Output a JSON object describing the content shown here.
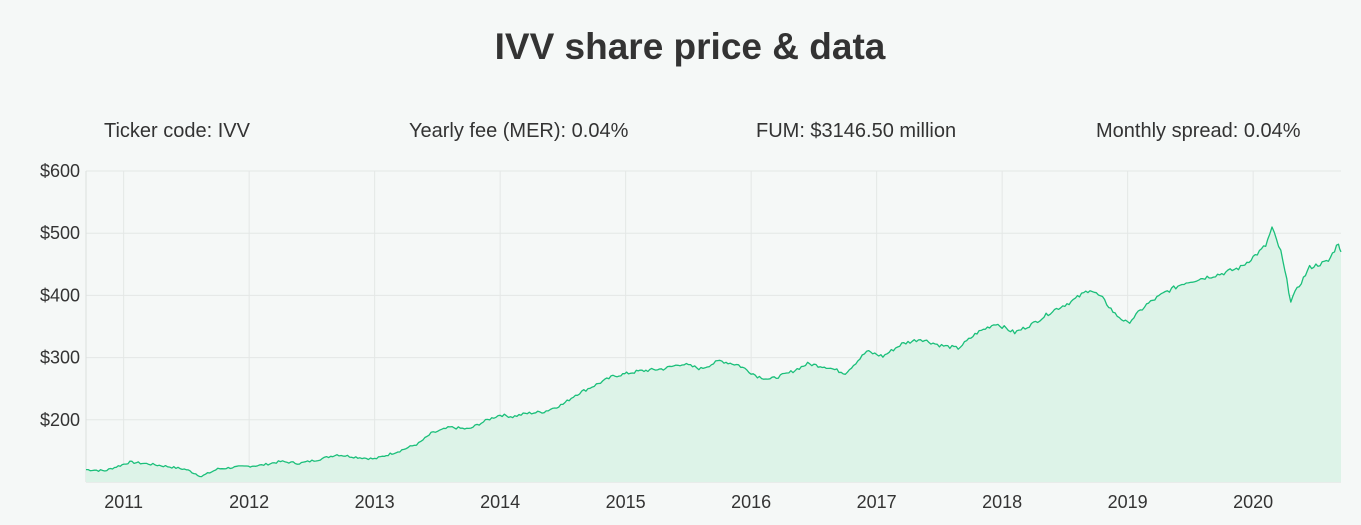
{
  "header": {
    "title": "IVV share price & data"
  },
  "stats": {
    "ticker": "Ticker code: IVV",
    "fee": "Yearly fee (MER): 0.04%",
    "fum": "FUM: $3146.50 million",
    "spread": "Monthly spread: 0.04%"
  },
  "colors": {
    "line": "#1bbf7a",
    "fill": "#ddf3e8",
    "grid": "#e4e7e6",
    "background": "#f5f8f7"
  },
  "chart_data": {
    "type": "area",
    "title": "",
    "xlabel": "",
    "ylabel": "",
    "ylim": [
      100,
      600
    ],
    "y_ticks": [
      {
        "value": 200,
        "label": "$200"
      },
      {
        "value": 300,
        "label": "$300"
      },
      {
        "value": 400,
        "label": "$400"
      },
      {
        "value": 500,
        "label": "$500"
      },
      {
        "value": 600,
        "label": "$600"
      }
    ],
    "x_ticks": [
      {
        "value": 2011.0,
        "label": "2011"
      },
      {
        "value": 2012.0,
        "label": "2012"
      },
      {
        "value": 2013.0,
        "label": "2013"
      },
      {
        "value": 2014.0,
        "label": "2014"
      },
      {
        "value": 2015.0,
        "label": "2015"
      },
      {
        "value": 2016.0,
        "label": "2016"
      },
      {
        "value": 2017.0,
        "label": "2017"
      },
      {
        "value": 2018.0,
        "label": "2018"
      },
      {
        "value": 2019.0,
        "label": "2019"
      },
      {
        "value": 2020.0,
        "label": "2020"
      }
    ],
    "xlim": [
      2010.7,
      2020.7
    ],
    "grid": true,
    "series": [
      {
        "x": [
          2010.7,
          2010.85,
          2011.05,
          2011.2,
          2011.35,
          2011.5,
          2011.62,
          2011.75,
          2011.9,
          2012.1,
          2012.25,
          2012.4,
          2012.55,
          2012.7,
          2012.85,
          2013.0,
          2013.2,
          2013.35,
          2013.45,
          2013.6,
          2013.75,
          2013.9,
          2014.0,
          2014.1,
          2014.2,
          2014.35,
          2014.5,
          2014.6,
          2014.75,
          2014.9,
          2015.1,
          2015.3,
          2015.45,
          2015.6,
          2015.75,
          2015.9,
          2016.05,
          2016.15,
          2016.3,
          2016.45,
          2016.6,
          2016.75,
          2016.85,
          2016.92,
          2017.05,
          2017.2,
          2017.35,
          2017.5,
          2017.65,
          2017.8,
          2017.95,
          2018.1,
          2018.25,
          2018.4,
          2018.55,
          2018.7,
          2018.8,
          2018.9,
          2019.0,
          2019.15,
          2019.3,
          2019.45,
          2019.6,
          2019.75,
          2019.9,
          2020.05,
          2020.1,
          2020.15,
          2020.22,
          2020.3,
          2020.45,
          2020.6,
          2020.68,
          2020.7
        ],
        "y": [
          120,
          118,
          132,
          129,
          125,
          120,
          109,
          121,
          124,
          127,
          133,
          130,
          136,
          144,
          140,
          137,
          150,
          162,
          178,
          188,
          185,
          200,
          208,
          205,
          210,
          213,
          225,
          240,
          255,
          270,
          278,
          282,
          290,
          282,
          295,
          288,
          270,
          265,
          275,
          290,
          285,
          275,
          295,
          310,
          302,
          322,
          330,
          320,
          315,
          340,
          355,
          340,
          355,
          375,
          390,
          410,
          395,
          370,
          355,
          385,
          405,
          420,
          428,
          435,
          445,
          470,
          480,
          508,
          470,
          392,
          445,
          455,
          485,
          470
        ]
      }
    ]
  }
}
